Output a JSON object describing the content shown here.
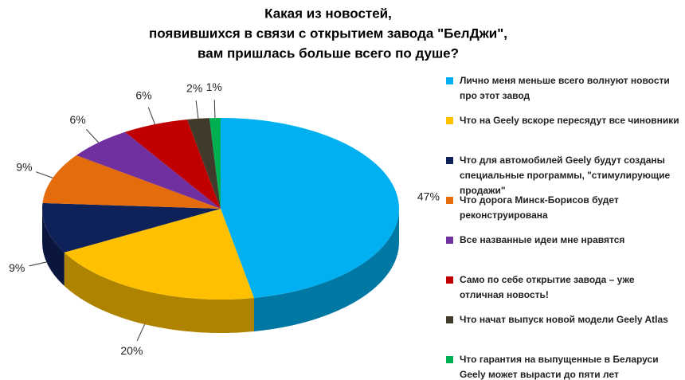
{
  "chart_data": {
    "type": "pie",
    "title": [
      "Какая из новостей,",
      "появившихся в связи с открытием завода \"БелДжи\",",
      "вам пришлась больше всего по душе?"
    ],
    "categories": [
      "Лично меня меньше всего волнуют новости про этот завод",
      "Что на Geely вскоре пересядут все чиновники",
      "Что для  автомобилей Geely будут созданы специальные программы, \"стимулирующие продажи\"",
      "Что дорога Минск-Борисов будет реконструирована",
      "Все названные идеи мне нравятся",
      "Само по себе открытие завода – уже отличная новость!",
      "Что начат выпуск новой модели Geely Atlas",
      "Что гарантия на выпущенные в Беларуси Geely может вырасти до пяти лет"
    ],
    "values": [
      47,
      20,
      9,
      9,
      6,
      6,
      2,
      1
    ],
    "value_labels": [
      "47%",
      "20%",
      "9%",
      "9%",
      "6%",
      "6%",
      "2%",
      "1%"
    ],
    "colors": [
      "#00b0f0",
      "#ffc000",
      "#0e2159",
      "#e46c0a",
      "#7030a0",
      "#c00000",
      "#3f3a2a",
      "#00b050"
    ],
    "legend": "right"
  }
}
